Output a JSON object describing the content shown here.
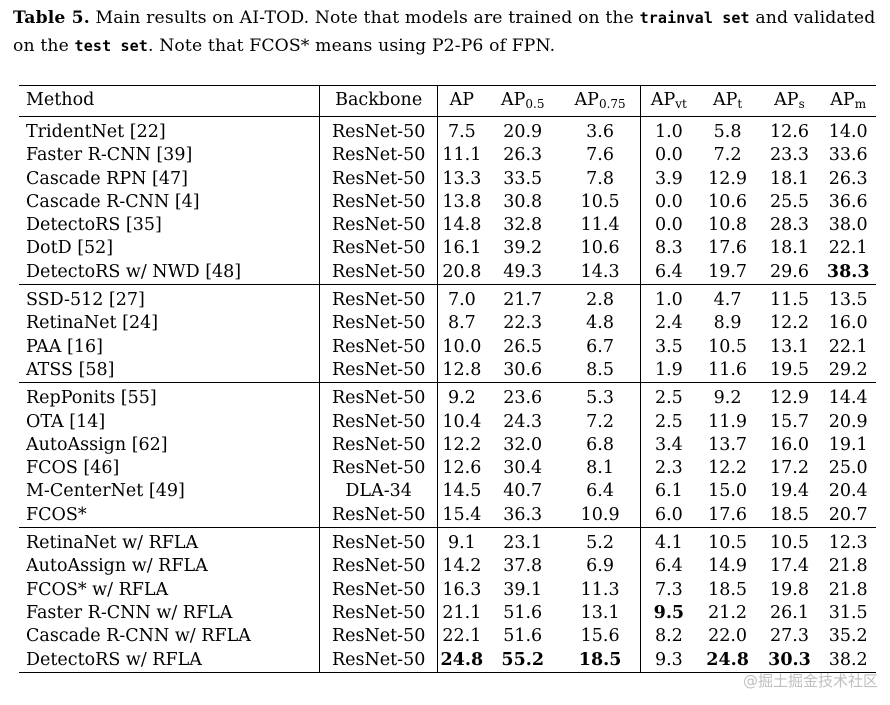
{
  "caption": {
    "label": "Table 5.",
    "part1": " Main results on AI-TOD. Note that models are trained on the ",
    "code1": "trainval set",
    "part2": " and validated on the ",
    "code2": "test set",
    "part3": ". Note that FCOS* means using P2-P6 of FPN."
  },
  "header": {
    "method": "Method",
    "backbone": "Backbone",
    "ap": "AP",
    "ap50_base": "AP",
    "ap50_sub": "0.5",
    "ap75_base": "AP",
    "ap75_sub": "0.75",
    "apvt_base": "AP",
    "apvt_sub": "vt",
    "apt_base": "AP",
    "apt_sub": "t",
    "aps_base": "AP",
    "aps_sub": "s",
    "apm_base": "AP",
    "apm_sub": "m"
  },
  "groups": [
    [
      {
        "method": "TridentNet [22]",
        "backbone": "ResNet-50",
        "vals": [
          "7.5",
          "20.9",
          "3.6",
          "1.0",
          "5.8",
          "12.6",
          "14.0"
        ]
      },
      {
        "method": "Faster R-CNN [39]",
        "backbone": "ResNet-50",
        "vals": [
          "11.1",
          "26.3",
          "7.6",
          "0.0",
          "7.2",
          "23.3",
          "33.6"
        ]
      },
      {
        "method": "Cascade RPN [47]",
        "backbone": "ResNet-50",
        "vals": [
          "13.3",
          "33.5",
          "7.8",
          "3.9",
          "12.9",
          "18.1",
          "26.3"
        ]
      },
      {
        "method": "Cascade R-CNN [4]",
        "backbone": "ResNet-50",
        "vals": [
          "13.8",
          "30.8",
          "10.5",
          "0.0",
          "10.6",
          "25.5",
          "36.6"
        ]
      },
      {
        "method": "DetectoRS [35]",
        "backbone": "ResNet-50",
        "vals": [
          "14.8",
          "32.8",
          "11.4",
          "0.0",
          "10.8",
          "28.3",
          "38.0"
        ]
      },
      {
        "method": "DotD [52]",
        "backbone": "ResNet-50",
        "vals": [
          "16.1",
          "39.2",
          "10.6",
          "8.3",
          "17.6",
          "18.1",
          "22.1"
        ]
      },
      {
        "method": "DetectoRS w/ NWD [48]",
        "backbone": "ResNet-50",
        "vals": [
          "20.8",
          "49.3",
          "14.3",
          "6.4",
          "19.7",
          "29.6",
          "38.3"
        ],
        "bold": [
          6
        ]
      }
    ],
    [
      {
        "method": "SSD-512 [27]",
        "backbone": "ResNet-50",
        "vals": [
          "7.0",
          "21.7",
          "2.8",
          "1.0",
          "4.7",
          "11.5",
          "13.5"
        ]
      },
      {
        "method": "RetinaNet [24]",
        "backbone": "ResNet-50",
        "vals": [
          "8.7",
          "22.3",
          "4.8",
          "2.4",
          "8.9",
          "12.2",
          "16.0"
        ]
      },
      {
        "method": "PAA [16]",
        "backbone": "ResNet-50",
        "vals": [
          "10.0",
          "26.5",
          "6.7",
          "3.5",
          "10.5",
          "13.1",
          "22.1"
        ]
      },
      {
        "method": "ATSS [58]",
        "backbone": "ResNet-50",
        "vals": [
          "12.8",
          "30.6",
          "8.5",
          "1.9",
          "11.6",
          "19.5",
          "29.2"
        ]
      }
    ],
    [
      {
        "method": "RepPonits [55]",
        "backbone": "ResNet-50",
        "vals": [
          "9.2",
          "23.6",
          "5.3",
          "2.5",
          "9.2",
          "12.9",
          "14.4"
        ]
      },
      {
        "method": "OTA [14]",
        "backbone": "ResNet-50",
        "vals": [
          "10.4",
          "24.3",
          "7.2",
          "2.5",
          "11.9",
          "15.7",
          "20.9"
        ]
      },
      {
        "method": "AutoAssign [62]",
        "backbone": "ResNet-50",
        "vals": [
          "12.2",
          "32.0",
          "6.8",
          "3.4",
          "13.7",
          "16.0",
          "19.1"
        ]
      },
      {
        "method": "FCOS [46]",
        "backbone": "ResNet-50",
        "vals": [
          "12.6",
          "30.4",
          "8.1",
          "2.3",
          "12.2",
          "17.2",
          "25.0"
        ]
      },
      {
        "method": "M-CenterNet [49]",
        "backbone": "DLA-34",
        "vals": [
          "14.5",
          "40.7",
          "6.4",
          "6.1",
          "15.0",
          "19.4",
          "20.4"
        ]
      },
      {
        "method": "FCOS*",
        "backbone": "ResNet-50",
        "vals": [
          "15.4",
          "36.3",
          "10.9",
          "6.0",
          "17.6",
          "18.5",
          "20.7"
        ]
      }
    ],
    [
      {
        "method": "RetinaNet w/ RFLA",
        "backbone": "ResNet-50",
        "vals": [
          "9.1",
          "23.1",
          "5.2",
          "4.1",
          "10.5",
          "10.5",
          "12.3"
        ]
      },
      {
        "method": "AutoAssign w/ RFLA",
        "backbone": "ResNet-50",
        "vals": [
          "14.2",
          "37.8",
          "6.9",
          "6.4",
          "14.9",
          "17.4",
          "21.8"
        ]
      },
      {
        "method": "FCOS* w/ RFLA",
        "backbone": "ResNet-50",
        "vals": [
          "16.3",
          "39.1",
          "11.3",
          "7.3",
          "18.5",
          "19.8",
          "21.8"
        ]
      },
      {
        "method": "Faster R-CNN w/ RFLA",
        "backbone": "ResNet-50",
        "vals": [
          "21.1",
          "51.6",
          "13.1",
          "9.5",
          "21.2",
          "26.1",
          "31.5"
        ],
        "bold": [
          3
        ]
      },
      {
        "method": "Cascade R-CNN w/ RFLA",
        "backbone": "ResNet-50",
        "vals": [
          "22.1",
          "51.6",
          "15.6",
          "8.2",
          "22.0",
          "27.3",
          "35.2"
        ]
      },
      {
        "method": "DetectoRS w/ RFLA",
        "backbone": "ResNet-50",
        "vals": [
          "24.8",
          "55.2",
          "18.5",
          "9.3",
          "24.8",
          "30.3",
          "38.2"
        ],
        "bold": [
          0,
          1,
          2,
          4,
          5
        ]
      }
    ]
  ],
  "watermark": "@掘土掘金技术社区"
}
